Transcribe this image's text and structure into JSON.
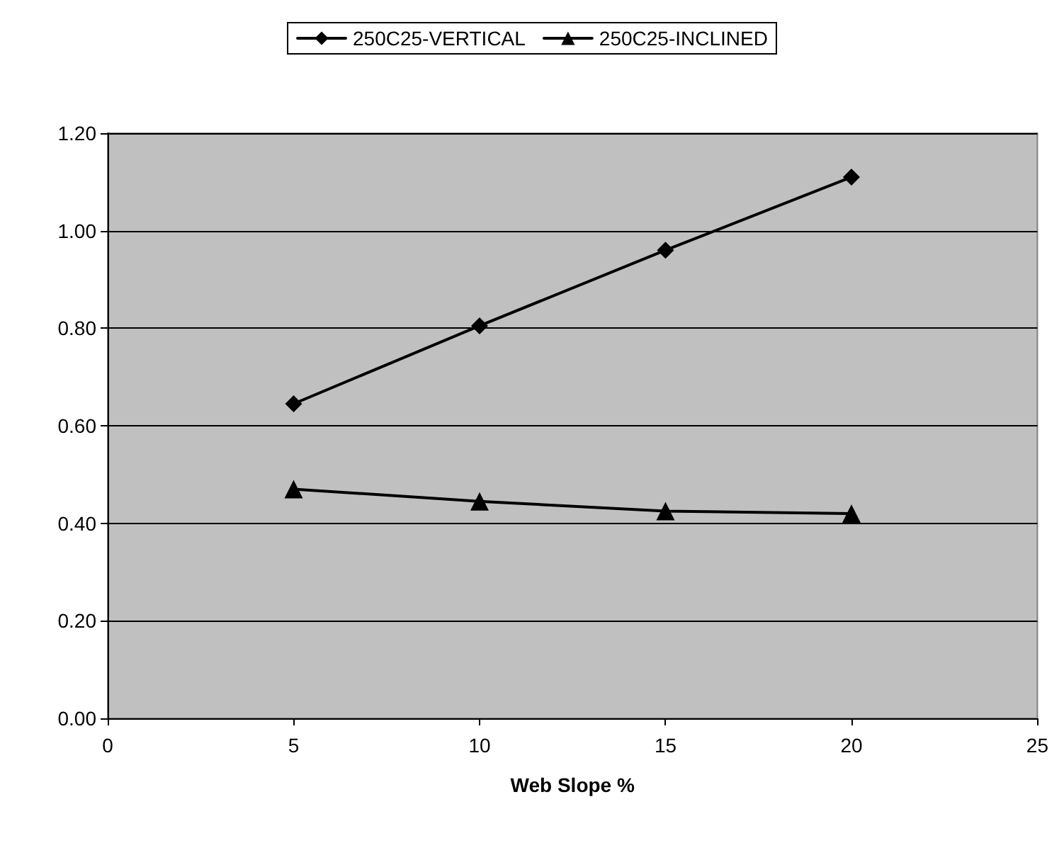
{
  "chart_data": {
    "type": "line",
    "xlabel": "Web Slope %",
    "x": [
      5,
      10,
      15,
      20
    ],
    "series": [
      {
        "name": "250C25-VERTICAL",
        "color": "#000000",
        "marker": "diamond",
        "values": [
          0.645,
          0.805,
          0.96,
          1.11
        ]
      },
      {
        "name": "250C25-INCLINED",
        "color": "#000000",
        "marker": "triangle",
        "values": [
          0.47,
          0.445,
          0.425,
          0.42
        ]
      }
    ],
    "xlim": [
      0,
      25
    ],
    "xticks": [
      0,
      5,
      10,
      15,
      20,
      25
    ],
    "ylim": [
      0,
      1.2
    ],
    "yticks": [
      {
        "value": 0,
        "label": "0.00"
      },
      {
        "value": 0.2,
        "label": "0.20"
      },
      {
        "value": 0.4,
        "label": "0.40"
      },
      {
        "value": 0.6,
        "label": "0.60"
      },
      {
        "value": 0.8,
        "label": "0.80"
      },
      {
        "value": 1,
        "label": "1.00"
      },
      {
        "value": 1.2,
        "label": "1.20"
      }
    ],
    "grid": "y",
    "legend": "top",
    "line_style": "solid"
  }
}
